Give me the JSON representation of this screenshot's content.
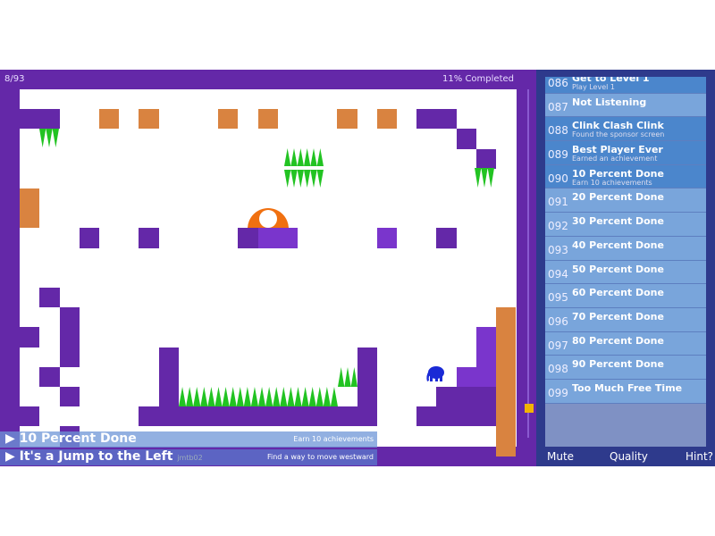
{
  "hud": {
    "counter": "8/93",
    "progress": "11% Completed"
  },
  "achievements": [
    {
      "num": "086",
      "name": "Get to Level 1",
      "desc": "Play Level 1",
      "done": true
    },
    {
      "num": "087",
      "name": "Not Listening",
      "desc": "",
      "done": false
    },
    {
      "num": "088",
      "name": "Clink Clash Clink",
      "desc": "Found the sponsor screen",
      "done": true
    },
    {
      "num": "089",
      "name": "Best Player Ever",
      "desc": "Earned an achievement",
      "done": true
    },
    {
      "num": "090",
      "name": "10 Percent Done",
      "desc": "Earn 10 achievements",
      "done": true
    },
    {
      "num": "091",
      "name": "20 Percent Done",
      "desc": "",
      "done": false
    },
    {
      "num": "092",
      "name": "30 Percent Done",
      "desc": "",
      "done": false
    },
    {
      "num": "093",
      "name": "40 Percent Done",
      "desc": "",
      "done": false
    },
    {
      "num": "094",
      "name": "50 Percent Done",
      "desc": "",
      "done": false
    },
    {
      "num": "095",
      "name": "60 Percent Done",
      "desc": "",
      "done": false
    },
    {
      "num": "096",
      "name": "70 Percent Done",
      "desc": "",
      "done": false
    },
    {
      "num": "097",
      "name": "80 Percent Done",
      "desc": "",
      "done": false
    },
    {
      "num": "098",
      "name": "90 Percent Done",
      "desc": "",
      "done": false
    },
    {
      "num": "099",
      "name": "Too Much Free Time",
      "desc": "",
      "done": false
    }
  ],
  "buttons": {
    "mute": "Mute",
    "quality": "Quality",
    "hint": "Hint?"
  },
  "notifications": [
    {
      "title": "10 Percent Done",
      "desc": "Earn 10 achievements"
    },
    {
      "title": "It's a Jump to the Left",
      "tag": "jmtb02",
      "desc": "Find a way to move westward"
    }
  ],
  "colors": {
    "wall": "#6428a8",
    "crate": "#d98340",
    "spikes": "#22c322",
    "player": "#1a2ad6",
    "sidebar": "#2e3a8c"
  }
}
